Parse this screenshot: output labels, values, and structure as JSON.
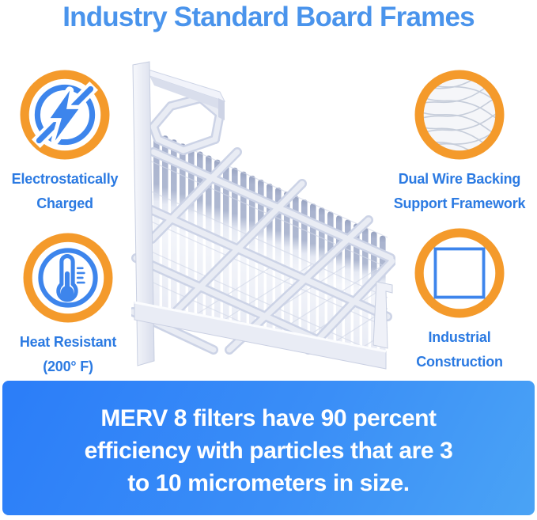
{
  "title": "Industry Standard Board Frames",
  "features": [
    {
      "id": "electrostatic",
      "icon": "lightning-circle-icon",
      "label_line1": "Electrostatically",
      "label_line2": "Charged"
    },
    {
      "id": "wire-backing",
      "icon": "wire-mesh-photo-icon",
      "label_line1": "Dual Wire Backing",
      "label_line2": "Support Framework"
    },
    {
      "id": "heat-resistant",
      "icon": "thermometer-icon",
      "label_line1": "Heat Resistant",
      "label_line2": "(200° F)"
    },
    {
      "id": "industrial",
      "icon": "lattice-grid-icon",
      "label_line1": "Industrial",
      "label_line2": "Construction"
    }
  ],
  "product_image": {
    "description": "Pleated air filter with board frame, partial cutaway 3D render"
  },
  "banner": {
    "line1": "MERV 8 filters have 90 percent",
    "line2": "efficiency with particles that are 3",
    "line3": "to 10 micrometers in size."
  },
  "colors": {
    "background": "#ffffff",
    "title_blue": "#4a94ec",
    "label_blue": "#2b7ae2",
    "ring_orange": "#f49a2b",
    "icon_blue": "#3d85ec",
    "banner_grad_a": "#2b7df8",
    "banner_grad_b": "#4aa3f5",
    "banner_text": "#ffffff"
  }
}
